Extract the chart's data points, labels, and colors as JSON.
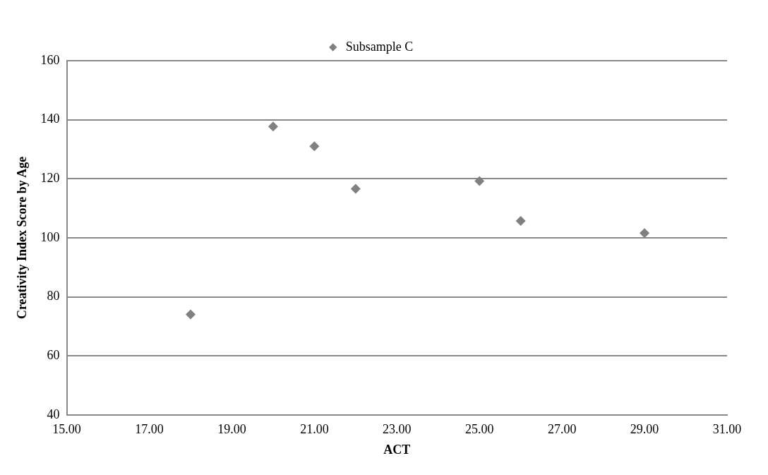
{
  "chart_data": {
    "type": "scatter",
    "xlabel": "ACT",
    "ylabel": "Creativity Index Score by Age",
    "series": [
      {
        "name": "Subsample C",
        "color": "#808080",
        "x": [
          18,
          20,
          21,
          22,
          25,
          26,
          29
        ],
        "values": [
          74,
          137.7,
          131,
          116.6,
          119.2,
          105.7,
          101.6
        ]
      }
    ],
    "xlim": [
      15,
      31
    ],
    "xticks": [
      {
        "value": 15,
        "label": "15.00"
      },
      {
        "value": 17,
        "label": "17.00"
      },
      {
        "value": 19,
        "label": "19.00"
      },
      {
        "value": 21,
        "label": "21.00"
      },
      {
        "value": 23,
        "label": "23.00"
      },
      {
        "value": 25,
        "label": "25.00"
      },
      {
        "value": 27,
        "label": "27.00"
      },
      {
        "value": 29,
        "label": "29.00"
      },
      {
        "value": 31,
        "label": "31.00"
      }
    ],
    "ylim": [
      40,
      160
    ],
    "yticks": [
      40,
      60,
      80,
      100,
      120,
      140,
      160
    ],
    "grid": "y",
    "legend": "top",
    "marker": "diamond"
  }
}
